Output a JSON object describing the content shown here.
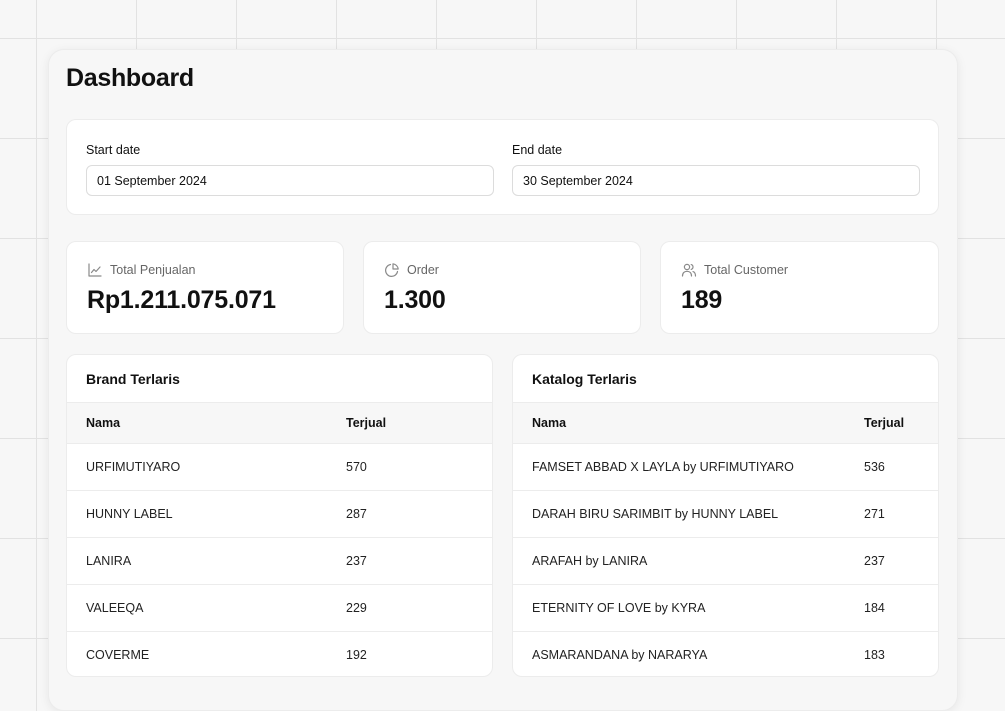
{
  "page": {
    "title": "Dashboard"
  },
  "filters": {
    "start": {
      "label": "Start date",
      "value": "01 September 2024"
    },
    "end": {
      "label": "End date",
      "value": "30 September 2024"
    }
  },
  "stats": [
    {
      "icon": "line-chart-icon",
      "label": "Total Penjualan",
      "value": "Rp1.211.075.071"
    },
    {
      "icon": "pie-chart-icon",
      "label": "Order",
      "value": "1.300"
    },
    {
      "icon": "users-icon",
      "label": "Total Customer",
      "value": "189"
    }
  ],
  "brand_table": {
    "title": "Brand Terlaris",
    "columns": [
      "Nama",
      "Terjual"
    ],
    "rows": [
      [
        "URFIMUTIYARO",
        "570"
      ],
      [
        "HUNNY LABEL",
        "287"
      ],
      [
        "LANIRA",
        "237"
      ],
      [
        "VALEEQA",
        "229"
      ],
      [
        "COVERME",
        "192"
      ]
    ]
  },
  "catalog_table": {
    "title": "Katalog Terlaris",
    "columns": [
      "Nama",
      "Terjual"
    ],
    "rows": [
      [
        "FAMSET ABBAD X LAYLA by URFIMUTIYARO",
        "536"
      ],
      [
        "DARAH BIRU SARIMBIT by HUNNY LABEL",
        "271"
      ],
      [
        "ARAFAH by LANIRA",
        "237"
      ],
      [
        "ETERNITY OF LOVE by KYRA",
        "184"
      ],
      [
        "ASMARANDANA by NARARYA",
        "183"
      ]
    ]
  }
}
